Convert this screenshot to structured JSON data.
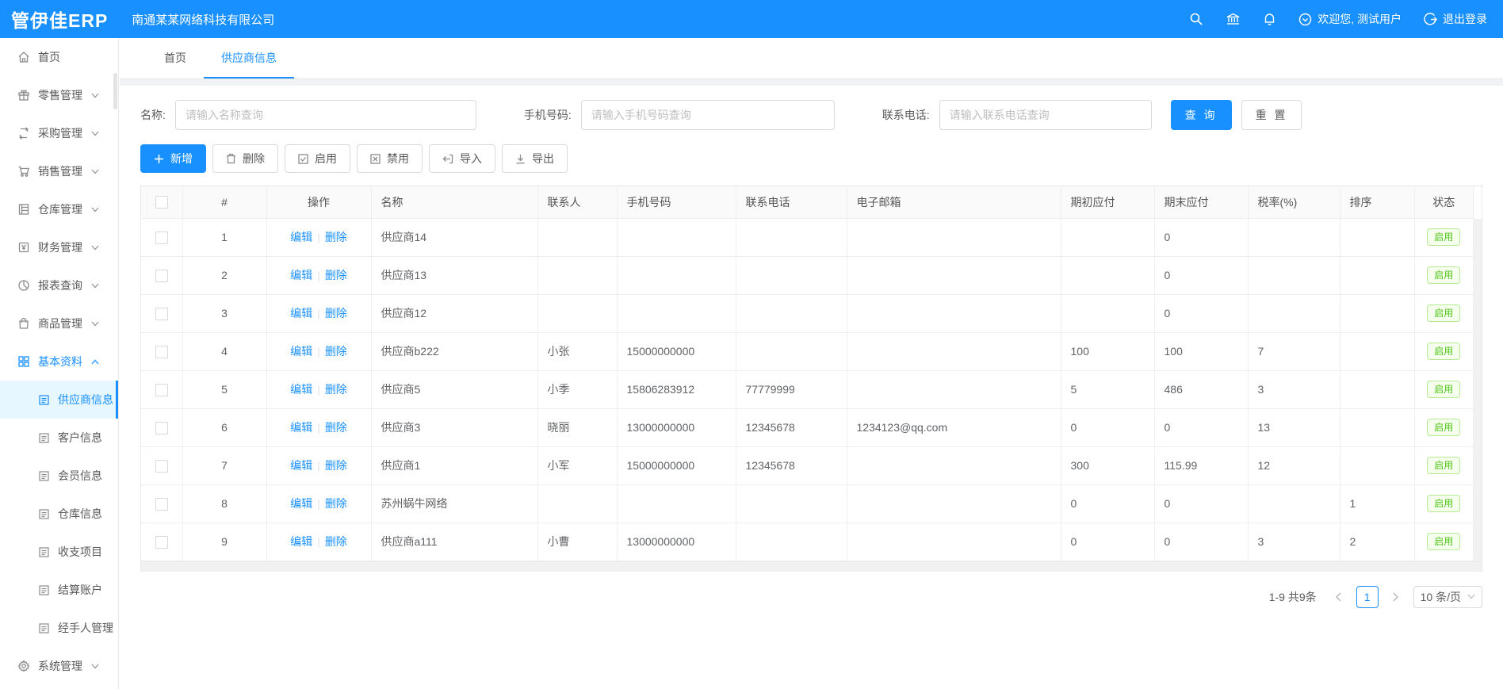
{
  "colors": {
    "primary": "#1890ff",
    "status_green": "#52c41a",
    "status_green_bg": "#f6ffed",
    "status_green_border": "#b7eb8f"
  },
  "header": {
    "logo": "管伊佳ERP",
    "company": "南通某某网络科技有限公司",
    "welcome": "欢迎您, 测试用户",
    "logout": "退出登录",
    "icons": [
      "search-icon",
      "bank-icon",
      "bell-icon"
    ]
  },
  "sidebar": {
    "items": [
      {
        "key": "home",
        "label": "首页",
        "icon": "home-icon",
        "chevron": null,
        "type": "item"
      },
      {
        "key": "retail",
        "label": "零售管理",
        "icon": "retail-icon",
        "chevron": "down",
        "type": "item"
      },
      {
        "key": "purchase",
        "label": "采购管理",
        "icon": "purchase-icon",
        "chevron": "down",
        "type": "item"
      },
      {
        "key": "sales",
        "label": "销售管理",
        "icon": "sales-icon",
        "chevron": "down",
        "type": "item"
      },
      {
        "key": "warehouse",
        "label": "仓库管理",
        "icon": "warehouse-icon",
        "chevron": "down",
        "type": "item"
      },
      {
        "key": "finance",
        "label": "财务管理",
        "icon": "finance-icon",
        "chevron": "down",
        "type": "item"
      },
      {
        "key": "report",
        "label": "报表查询",
        "icon": "report-icon",
        "chevron": "down",
        "type": "item"
      },
      {
        "key": "goods",
        "label": "商品管理",
        "icon": "goods-icon",
        "chevron": "down",
        "type": "item"
      },
      {
        "key": "basic",
        "label": "基本资料",
        "icon": "basic-icon",
        "chevron": "up",
        "type": "item",
        "parent_active": true
      },
      {
        "key": "supplier-info",
        "label": "供应商信息",
        "icon": "doc-icon",
        "chevron": null,
        "type": "subitem",
        "active": true
      },
      {
        "key": "customer-info",
        "label": "客户信息",
        "icon": "doc-icon",
        "chevron": null,
        "type": "subitem"
      },
      {
        "key": "member-info",
        "label": "会员信息",
        "icon": "doc-icon",
        "chevron": null,
        "type": "subitem"
      },
      {
        "key": "warehouse-info",
        "label": "仓库信息",
        "icon": "doc-icon",
        "chevron": null,
        "type": "subitem"
      },
      {
        "key": "income-expense",
        "label": "收支项目",
        "icon": "doc-icon",
        "chevron": null,
        "type": "subitem"
      },
      {
        "key": "settlement-account",
        "label": "结算账户",
        "icon": "doc-icon",
        "chevron": null,
        "type": "subitem"
      },
      {
        "key": "handler-management",
        "label": "经手人管理",
        "icon": "doc-icon",
        "chevron": null,
        "type": "subitem"
      },
      {
        "key": "system",
        "label": "系统管理",
        "icon": "settings-icon",
        "chevron": "down",
        "type": "item"
      }
    ]
  },
  "tabs": {
    "items": [
      {
        "label": "首页",
        "active": false
      },
      {
        "label": "供应商信息",
        "active": true
      }
    ]
  },
  "filters": {
    "name_label": "名称:",
    "name_placeholder": "请输入名称查询",
    "mobile_label": "手机号码:",
    "mobile_placeholder": "请输入手机号码查询",
    "tel_label": "联系电话:",
    "tel_placeholder": "请输入联系电话查询",
    "search_label": "查 询",
    "reset_label": "重 置"
  },
  "toolbar": {
    "add_label": "新增",
    "delete_label": "删除",
    "enable_label": "启用",
    "disable_label": "禁用",
    "import_label": "导入",
    "export_label": "导出"
  },
  "table": {
    "columns": [
      "#",
      "操作",
      "名称",
      "联系人",
      "手机号码",
      "联系电话",
      "电子邮箱",
      "期初应付",
      "期末应付",
      "税率(%)",
      "排序",
      "状态"
    ],
    "edit_label": "编辑",
    "delete_label": "删除",
    "op_divider": "|",
    "rows": [
      {
        "idx": "1",
        "name": "供应商14",
        "contact": "",
        "mobile": "",
        "tel": "",
        "email": "",
        "opening": "",
        "closing": "0",
        "tax": "",
        "sort": "",
        "status": "启用"
      },
      {
        "idx": "2",
        "name": "供应商13",
        "contact": "",
        "mobile": "",
        "tel": "",
        "email": "",
        "opening": "",
        "closing": "0",
        "tax": "",
        "sort": "",
        "status": "启用"
      },
      {
        "idx": "3",
        "name": "供应商12",
        "contact": "",
        "mobile": "",
        "tel": "",
        "email": "",
        "opening": "",
        "closing": "0",
        "tax": "",
        "sort": "",
        "status": "启用"
      },
      {
        "idx": "4",
        "name": "供应商b222",
        "contact": "小张",
        "mobile": "15000000000",
        "tel": "",
        "email": "",
        "opening": "100",
        "closing": "100",
        "tax": "7",
        "sort": "",
        "status": "启用"
      },
      {
        "idx": "5",
        "name": "供应商5",
        "contact": "小季",
        "mobile": "15806283912",
        "tel": "77779999",
        "email": "",
        "opening": "5",
        "closing": "486",
        "tax": "3",
        "sort": "",
        "status": "启用"
      },
      {
        "idx": "6",
        "name": "供应商3",
        "contact": "晓丽",
        "mobile": "13000000000",
        "tel": "12345678",
        "email": "1234123@qq.com",
        "opening": "0",
        "closing": "0",
        "tax": "13",
        "sort": "",
        "status": "启用"
      },
      {
        "idx": "7",
        "name": "供应商1",
        "contact": "小军",
        "mobile": "15000000000",
        "tel": "12345678",
        "email": "",
        "opening": "300",
        "closing": "115.99",
        "tax": "12",
        "sort": "",
        "status": "启用"
      },
      {
        "idx": "8",
        "name": "苏州蜗牛网络",
        "contact": "",
        "mobile": "",
        "tel": "",
        "email": "",
        "opening": "0",
        "closing": "0",
        "tax": "",
        "sort": "1",
        "status": "启用"
      },
      {
        "idx": "9",
        "name": "供应商a111",
        "contact": "小曹",
        "mobile": "13000000000",
        "tel": "",
        "email": "",
        "opening": "0",
        "closing": "0",
        "tax": "3",
        "sort": "2",
        "status": "启用"
      }
    ]
  },
  "pagination": {
    "total": "1-9 共9条",
    "current_page": "1",
    "page_size": "10 条/页"
  }
}
